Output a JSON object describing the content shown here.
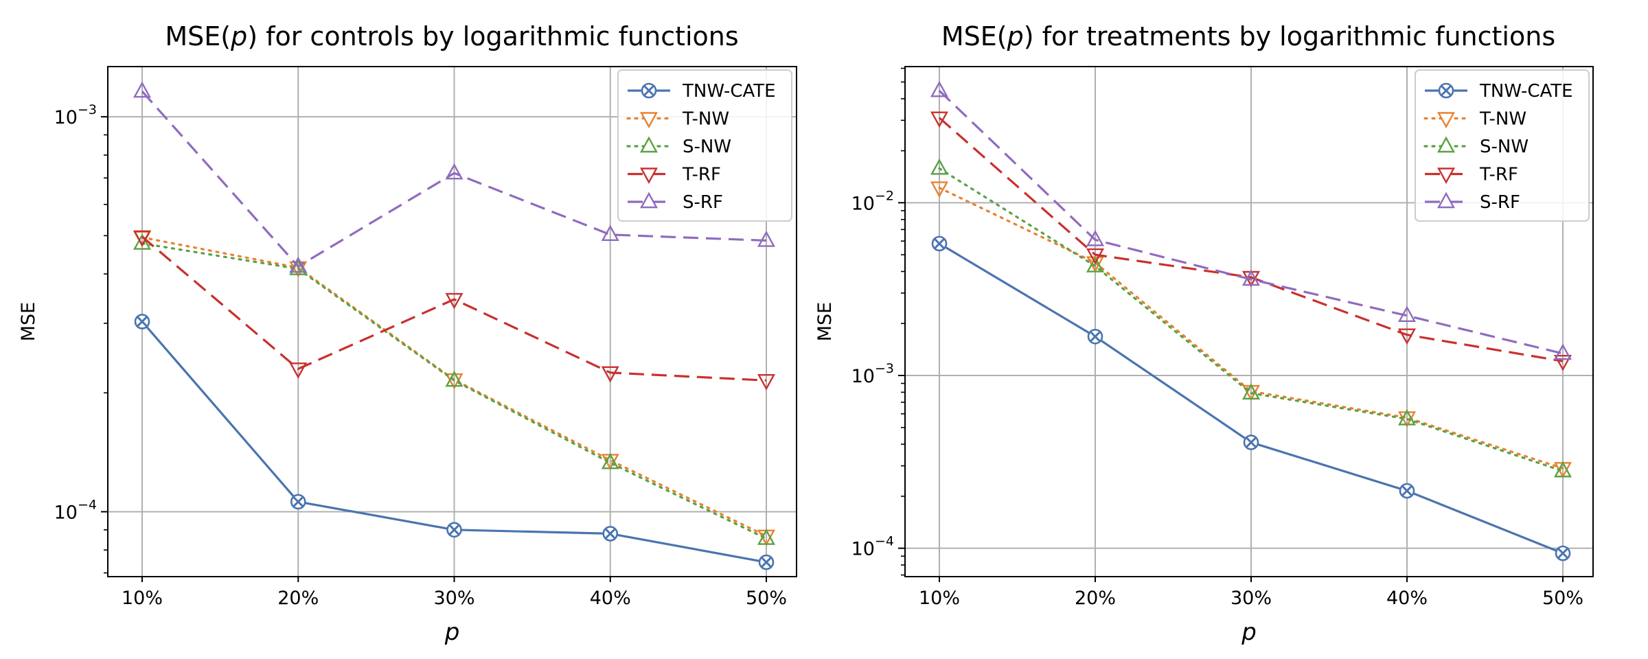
{
  "chart_data": [
    {
      "type": "line",
      "title_prefix": "MSE(",
      "title_var": "p",
      "title_suffix": ") for controls by logarithmic functions",
      "xlabel": "p",
      "ylabel": "MSE",
      "yscale": "log",
      "ylim": [
        6.85e-05,
        0.00134
      ],
      "categories": [
        "10%",
        "20%",
        "30%",
        "40%",
        "50%"
      ],
      "yticks": [
        {
          "base": "10",
          "exp": "−4",
          "value": 0.0001
        },
        {
          "base": "10",
          "exp": "−3",
          "value": 0.001
        }
      ],
      "grid": true,
      "legend_position": "upper right",
      "series": [
        {
          "name": "TNW-CATE",
          "color": "#4a74b0",
          "dash": "solid",
          "marker": "x",
          "values": [
            0.000303,
            0.000106,
            9e-05,
            8.8e-05,
            7.45e-05
          ]
        },
        {
          "name": "T-NW",
          "color": "#e8822f",
          "dash": "dotted",
          "marker": "v",
          "values": [
            0.000495,
            0.000415,
            0.000216,
            0.000135,
            8.68e-05
          ]
        },
        {
          "name": "S-NW",
          "color": "#5ba144",
          "dash": "dotted",
          "marker": "^",
          "values": [
            0.000478,
            0.000412,
            0.000215,
            0.000133,
            8.55e-05
          ]
        },
        {
          "name": "T-RF",
          "color": "#c8312e",
          "dash": "dashed",
          "marker": "v",
          "values": [
            0.000497,
            0.00023,
            0.000345,
            0.000225,
            0.000215
          ]
        },
        {
          "name": "S-RF",
          "color": "#8f6bbf",
          "dash": "dashed",
          "marker": "^",
          "values": [
            0.00116,
            0.000418,
            0.00072,
            0.000503,
            0.000486
          ]
        }
      ]
    },
    {
      "type": "line",
      "title_prefix": "MSE(",
      "title_var": "p",
      "title_suffix": ") for treatments by logarithmic functions",
      "xlabel": "p",
      "ylabel": "MSE",
      "yscale": "log",
      "ylim": [
        6.85e-05,
        0.0614
      ],
      "categories": [
        "10%",
        "20%",
        "30%",
        "40%",
        "50%"
      ],
      "yticks": [
        {
          "base": "10",
          "exp": "−4",
          "value": 0.0001
        },
        {
          "base": "10",
          "exp": "−3",
          "value": 0.001
        },
        {
          "base": "10",
          "exp": "−2",
          "value": 0.01
        }
      ],
      "grid": true,
      "legend_position": "upper right",
      "series": [
        {
          "name": "TNW-CATE",
          "color": "#4a74b0",
          "dash": "solid",
          "marker": "x",
          "values": [
            0.0058,
            0.00168,
            0.00041,
            0.000215,
            9.35e-05
          ]
        },
        {
          "name": "T-NW",
          "color": "#e8822f",
          "dash": "dotted",
          "marker": "v",
          "values": [
            0.0122,
            0.0045,
            0.00081,
            0.00057,
            0.00029
          ]
        },
        {
          "name": "S-NW",
          "color": "#5ba144",
          "dash": "dotted",
          "marker": "^",
          "values": [
            0.0158,
            0.0043,
            0.00079,
            0.00056,
            0.00028
          ]
        },
        {
          "name": "T-RF",
          "color": "#c8312e",
          "dash": "dashed",
          "marker": "v",
          "values": [
            0.031,
            0.005,
            0.0037,
            0.00172,
            0.00121
          ]
        },
        {
          "name": "S-RF",
          "color": "#8f6bbf",
          "dash": "dashed",
          "marker": "^",
          "values": [
            0.0445,
            0.0061,
            0.0036,
            0.00222,
            0.00134
          ]
        }
      ]
    }
  ]
}
